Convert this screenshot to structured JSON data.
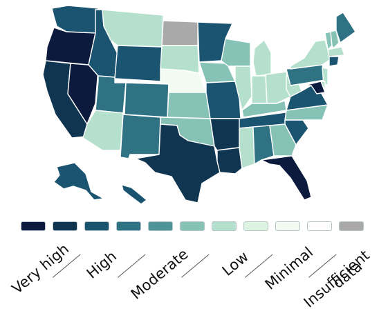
{
  "palette": {
    "very_high_1": "#0c1b3d",
    "very_high_2": "#0f3550",
    "high": "#1a5470",
    "moderate_1": "#2e7283",
    "moderate_2": "#4d9398",
    "low_1": "#86c2b6",
    "low_2": "#b4e0cd",
    "minimal_1": "#def4e2",
    "minimal_2": "#f2fbf2",
    "minimal_3": "#ffffff",
    "insufficient": "#a9a9a9"
  },
  "legend": {
    "swatches": [
      {
        "color": "#0c1b3d"
      },
      {
        "color": "#0f3550"
      },
      {
        "color": "#1a5470"
      },
      {
        "color": "#2e7283"
      },
      {
        "color": "#4d9398"
      },
      {
        "color": "#86c2b6"
      },
      {
        "color": "#b4e0cd"
      },
      {
        "color": "#def4e2"
      },
      {
        "color": "#f2fbf2"
      },
      {
        "color": "#ffffff"
      },
      {
        "color": "#a9a9a9"
      }
    ],
    "labels": {
      "very_high": "Very high",
      "high": "High",
      "moderate": "Moderate",
      "low": "Low",
      "minimal": "Minimal",
      "insufficient_line1": "Insufficient",
      "insufficient_line2": "data"
    }
  },
  "states": {
    "WA": "high",
    "OR": "very_high_1",
    "CA": "very_high_2",
    "NV": "very_high_1",
    "ID": "high",
    "MT": "low_2",
    "WY": "high",
    "UT": "moderate_1",
    "CO": "moderate_1",
    "AZ": "low_2",
    "NM": "moderate_1",
    "ND": "insufficient",
    "SD": "low_2",
    "NE": "minimal_2",
    "KS": "low_1",
    "OK": "low_1",
    "TX": "very_high_2",
    "MN": "high",
    "IA": "low_1",
    "MO": "high",
    "AR": "very_high_2",
    "LA": "very_high_2",
    "WI": "low_1",
    "IL": "low_2",
    "MI": "low_2",
    "IN": "low_2",
    "OH": "low_2",
    "KY": "low_1",
    "TN": "high",
    "MS": "low_2",
    "AL": "moderate_1",
    "GA": "low_1",
    "FL": "very_high_1",
    "SC": "high",
    "NC": "low_1",
    "VA": "high",
    "WV": "low_2",
    "PA": "moderate_1",
    "NY": "low_2",
    "VT": "low_1",
    "NH": "low_1",
    "ME": "moderate_1",
    "MA": "low_2",
    "CT": "high",
    "NJ": "low_2",
    "MD": "very_high_1",
    "DE": "low_2",
    "AK": "high",
    "HI": "high"
  }
}
